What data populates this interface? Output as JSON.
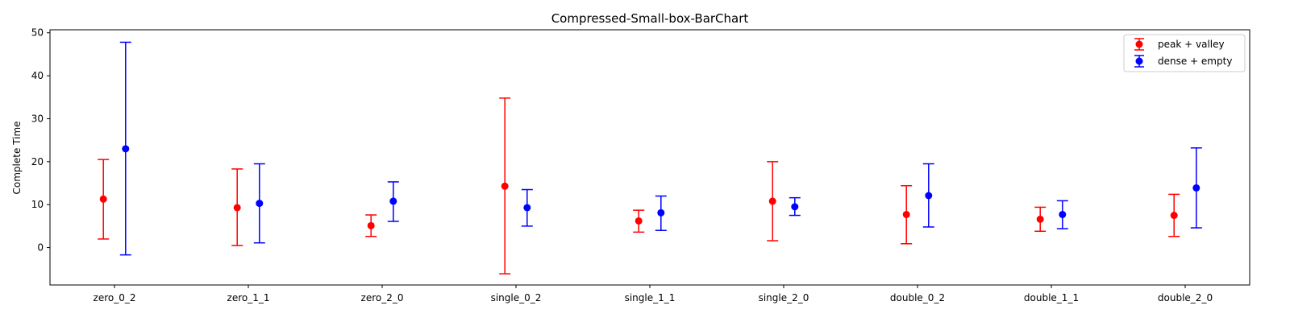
{
  "chart_data": {
    "type": "errorbar",
    "title": "Compressed-Small-box-BarChart",
    "xlabel": "",
    "ylabel": "Complete Time",
    "ylim": [
      -8.7,
      50.7
    ],
    "yticks": [
      0,
      10,
      20,
      30,
      40,
      50
    ],
    "grid": false,
    "legend_position": "top-right",
    "categories": [
      "zero_0_2",
      "zero_1_1",
      "zero_2_0",
      "single_0_2",
      "single_1_1",
      "single_2_0",
      "double_0_2",
      "double_1_1",
      "double_2_0"
    ],
    "series": [
      {
        "name": "peak + valley",
        "color": "#ff0000",
        "values": [
          11.3,
          9.3,
          5.1,
          14.3,
          6.2,
          10.8,
          7.7,
          6.6,
          7.5
        ],
        "lower": [
          2.0,
          0.5,
          2.6,
          -6.1,
          3.6,
          1.6,
          0.9,
          3.8,
          2.6
        ],
        "upper": [
          20.5,
          18.3,
          7.6,
          34.8,
          8.7,
          20.0,
          14.4,
          9.4,
          12.4
        ]
      },
      {
        "name": "dense + empty",
        "color": "#0000ff",
        "values": [
          23.0,
          10.3,
          10.8,
          9.3,
          8.1,
          9.5,
          12.1,
          7.7,
          13.9
        ],
        "lower": [
          -1.7,
          1.1,
          6.1,
          5.0,
          4.0,
          7.5,
          4.8,
          4.4,
          4.6
        ],
        "upper": [
          47.8,
          19.5,
          15.3,
          13.5,
          12.0,
          11.6,
          19.5,
          10.9,
          23.2
        ]
      }
    ]
  }
}
